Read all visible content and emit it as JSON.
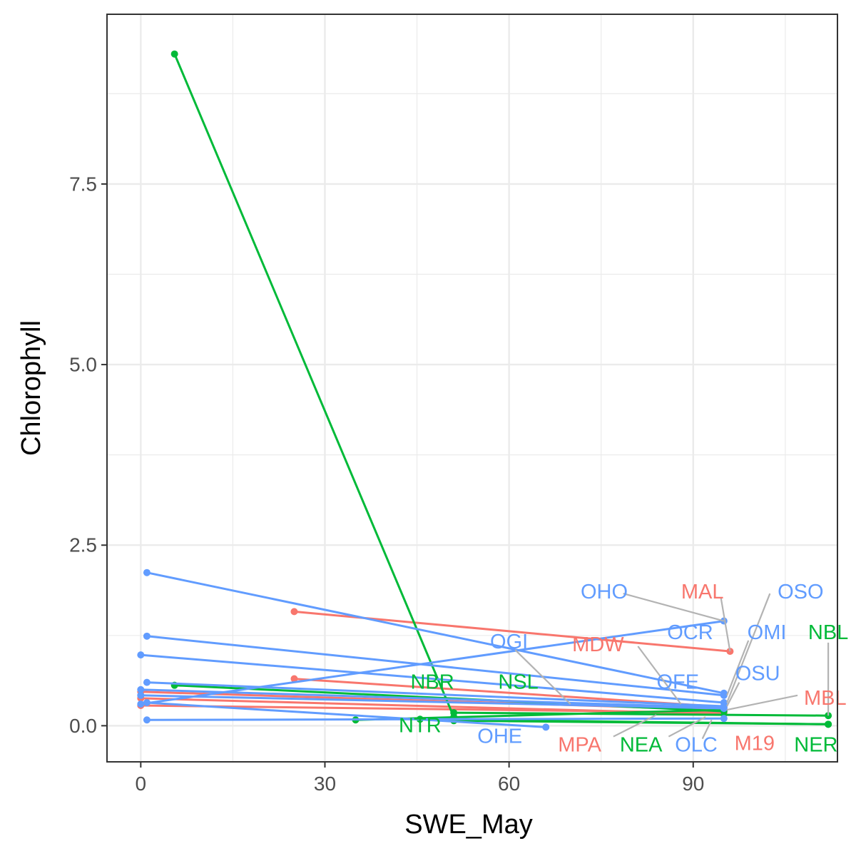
{
  "chart_data": {
    "type": "line",
    "xlabel": "SWE_May",
    "ylabel": "Chlorophyll",
    "xlim": [
      -5.5,
      113.5
    ],
    "ylim": [
      -0.5,
      9.85
    ],
    "x_ticks": [
      0,
      30,
      60,
      90
    ],
    "x_tick_labels": [
      "0",
      "30",
      "60",
      "90"
    ],
    "y_ticks": [
      0,
      2.5,
      5,
      7.5
    ],
    "y_tick_labels": [
      "0.0",
      "2.5",
      "5.0",
      "7.5"
    ],
    "x_minor": [
      15,
      45,
      75,
      105
    ],
    "y_minor": [
      1.25,
      3.75,
      6.25,
      8.75
    ],
    "grid": true,
    "legend": "none",
    "colors": {
      "M": "#F8766D",
      "N": "#00BA38",
      "O": "#619CFF",
      "leader": "#b3b3b3"
    },
    "series": [
      {
        "name": "MAL",
        "group": "M",
        "x": [
          25,
          96
        ],
        "y": [
          1.58,
          1.03
        ]
      },
      {
        "name": "MDW",
        "group": "M",
        "x": [
          25,
          95
        ],
        "y": [
          0.65,
          0.26
        ]
      },
      {
        "name": "MBL",
        "group": "M",
        "x": [
          0,
          95
        ],
        "y": [
          0.47,
          0.22
        ]
      },
      {
        "name": "M19",
        "group": "M",
        "x": [
          0,
          95
        ],
        "y": [
          0.38,
          0.16
        ]
      },
      {
        "name": "MPA",
        "group": "M",
        "x": [
          0,
          95
        ],
        "y": [
          0.28,
          0.18
        ]
      },
      {
        "name": "NBR",
        "group": "N",
        "x": [
          5.5,
          51
        ],
        "y": [
          9.3,
          0.12
        ]
      },
      {
        "name": "NBL",
        "group": "N",
        "x": [
          51,
          112
        ],
        "y": [
          0.18,
          0.14
        ]
      },
      {
        "name": "NSL",
        "group": "N",
        "x": [
          5.5,
          95
        ],
        "y": [
          0.56,
          0.2
        ]
      },
      {
        "name": "NTR",
        "group": "N",
        "x": [
          35,
          95
        ],
        "y": [
          0.08,
          0.22
        ]
      },
      {
        "name": "NEA",
        "group": "N",
        "x": [
          45.5,
          112
        ],
        "y": [
          0.09,
          0.02
        ]
      },
      {
        "name": "NER",
        "group": "N",
        "x": [
          51,
          112
        ],
        "y": [
          0.07,
          0.02
        ]
      },
      {
        "name": "OHO",
        "group": "O",
        "x": [
          0,
          95
        ],
        "y": [
          0.3,
          1.45
        ]
      },
      {
        "name": "OCR",
        "group": "O",
        "x": [
          1,
          95
        ],
        "y": [
          2.12,
          0.45
        ]
      },
      {
        "name": "OMI",
        "group": "O",
        "x": [
          1,
          95
        ],
        "y": [
          1.24,
          0.42
        ]
      },
      {
        "name": "OSO",
        "group": "O",
        "x": [
          0,
          95
        ],
        "y": [
          0.98,
          0.32
        ]
      },
      {
        "name": "OSU",
        "group": "O",
        "x": [
          1,
          95
        ],
        "y": [
          0.6,
          0.27
        ]
      },
      {
        "name": "OGI",
        "group": "O",
        "x": [
          0,
          95
        ],
        "y": [
          0.5,
          0.25
        ]
      },
      {
        "name": "OFE",
        "group": "O",
        "x": [
          0,
          95
        ],
        "y": [
          0.42,
          0.24
        ]
      },
      {
        "name": "OLC",
        "group": "O",
        "x": [
          1,
          95
        ],
        "y": [
          0.08,
          0.1
        ]
      },
      {
        "name": "OHE",
        "group": "O",
        "x": [
          1,
          66
        ],
        "y": [
          0.32,
          -0.02
        ]
      }
    ],
    "annotations": [
      {
        "text": "OHO",
        "group": "O",
        "x": 75.5,
        "y": 1.85,
        "leader_from": [
          78.6,
          1.83
        ],
        "leader_to": [
          95,
          1.45
        ]
      },
      {
        "text": "MAL",
        "group": "M",
        "x": 91.5,
        "y": 1.85,
        "leader_from": [
          94.5,
          1.78
        ],
        "leader_to": [
          96,
          1.03
        ]
      },
      {
        "text": "OSO",
        "group": "O",
        "x": 107.5,
        "y": 1.85,
        "leader_from": [
          102.5,
          1.83
        ],
        "leader_to": [
          95.5,
          0.32
        ]
      },
      {
        "text": "OCR",
        "group": "O",
        "x": 89.5,
        "y": 1.29,
        "leader_from": null,
        "leader_to": null
      },
      {
        "text": "OMI",
        "group": "O",
        "x": 102,
        "y": 1.29,
        "leader_from": [
          99,
          1.18
        ],
        "leader_to": [
          95.5,
          0.42
        ]
      },
      {
        "text": "NBL",
        "group": "N",
        "x": 112,
        "y": 1.29,
        "leader_from": [
          112,
          1.15
        ],
        "leader_to": [
          112,
          0.14
        ]
      },
      {
        "text": "OGI",
        "group": "O",
        "x": 60,
        "y": 1.16,
        "leader_from": [
          61,
          1.05
        ],
        "leader_to": [
          70,
          0.3
        ]
      },
      {
        "text": "MDW",
        "group": "M",
        "x": 74.5,
        "y": 1.12,
        "leader_from": [
          81,
          1.1
        ],
        "leader_to": [
          88,
          0.3
        ]
      },
      {
        "text": "OSU",
        "group": "O",
        "x": 100.5,
        "y": 0.72,
        "leader_from": [
          97.5,
          0.6
        ],
        "leader_to": [
          95.5,
          0.27
        ]
      },
      {
        "text": "OFE",
        "group": "O",
        "x": 87.5,
        "y": 0.6,
        "leader_from": null,
        "leader_to": null
      },
      {
        "text": "NBR",
        "group": "N",
        "x": 47.5,
        "y": 0.6,
        "leader_from": null,
        "leader_to": null
      },
      {
        "text": "NSL",
        "group": "N",
        "x": 61.5,
        "y": 0.6,
        "leader_from": null,
        "leader_to": null
      },
      {
        "text": "MBL",
        "group": "M",
        "x": 111.5,
        "y": 0.38,
        "leader_from": [
          107,
          0.42
        ],
        "leader_to": [
          95.5,
          0.22
        ]
      },
      {
        "text": "NTR",
        "group": "N",
        "x": 45.5,
        "y": 0.0,
        "leader_from": null,
        "leader_to": null
      },
      {
        "text": "OHE",
        "group": "O",
        "x": 58.5,
        "y": -0.15,
        "leader_from": null,
        "leader_to": null
      },
      {
        "text": "MPA",
        "group": "M",
        "x": 71.5,
        "y": -0.27,
        "leader_from": [
          77,
          -0.15
        ],
        "leader_to": [
          84,
          0.15
        ]
      },
      {
        "text": "NEA",
        "group": "N",
        "x": 81.5,
        "y": -0.27,
        "leader_from": [
          86,
          -0.15
        ],
        "leader_to": [
          92,
          0.12
        ]
      },
      {
        "text": "OLC",
        "group": "O",
        "x": 90.5,
        "y": -0.27,
        "leader_from": [
          91.5,
          -0.18
        ],
        "leader_to": [
          93,
          0.08
        ]
      },
      {
        "text": "M19",
        "group": "M",
        "x": 100,
        "y": -0.25,
        "leader_from": null,
        "leader_to": null
      },
      {
        "text": "NER",
        "group": "N",
        "x": 110,
        "y": -0.27,
        "leader_from": null,
        "leader_to": null
      }
    ]
  }
}
